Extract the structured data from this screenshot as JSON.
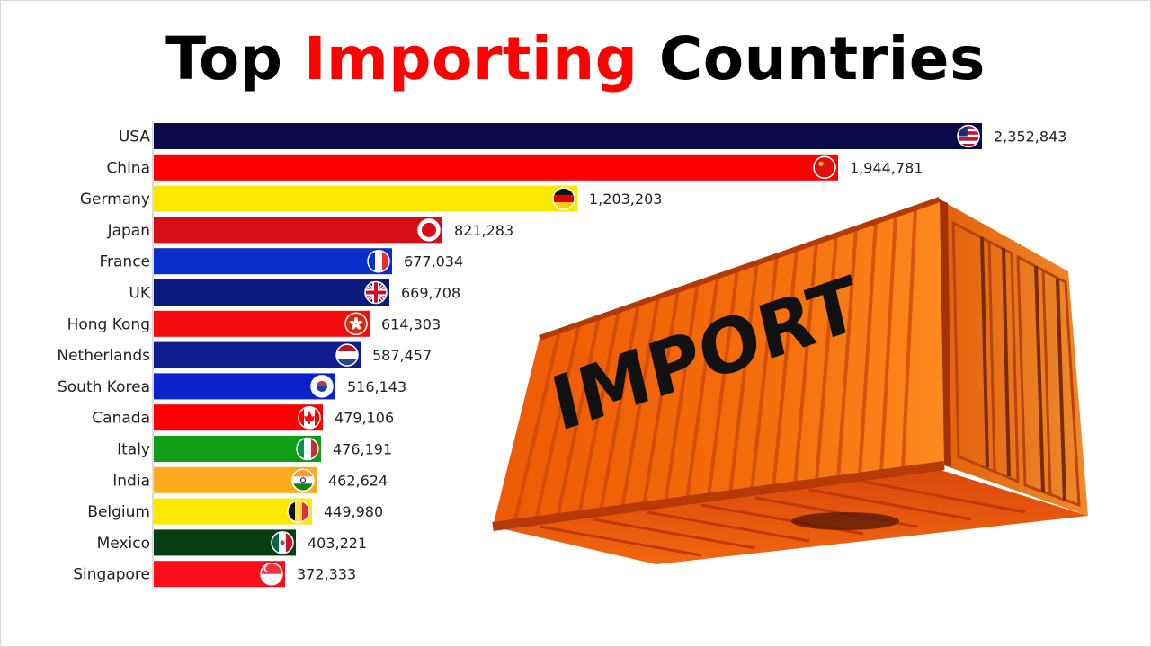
{
  "title": {
    "part1": "Top",
    "part2": "Importing",
    "part3": "Countries",
    "highlight_color": "#ff0000",
    "base_color": "#000000"
  },
  "container_label": "IMPORT",
  "chart_data": {
    "type": "bar",
    "orientation": "horizontal",
    "title": "Top Importing Countries",
    "xlabel": "",
    "ylabel": "",
    "xlim": [
      0,
      2352843
    ],
    "grid": false,
    "legend": "none",
    "categories": [
      "USA",
      "China",
      "Germany",
      "Japan",
      "France",
      "UK",
      "Hong Kong",
      "Netherlands",
      "South Korea",
      "Canada",
      "Italy",
      "India",
      "Belgium",
      "Mexico",
      "Singapore"
    ],
    "values": [
      2352843,
      1944781,
      1203203,
      821283,
      677034,
      669708,
      614303,
      587457,
      516143,
      479106,
      476191,
      462624,
      449980,
      403221,
      372333
    ],
    "value_labels": [
      "2,352,843",
      "1,944,781",
      "1,203,203",
      "821,283",
      "677,034",
      "669,708",
      "614,303",
      "587,457",
      "516,143",
      "479,106",
      "476,191",
      "462,624",
      "449,980",
      "403,221",
      "372,333"
    ],
    "colors": [
      "#0c0b4a",
      "#fc0000",
      "#fde800",
      "#d40e14",
      "#0a2fc8",
      "#0b1a7c",
      "#f30d0d",
      "#101c8e",
      "#0b21c9",
      "#fb0000",
      "#0e9f16",
      "#fdac1d",
      "#fde800",
      "#063d12",
      "#fb0d1a"
    ],
    "flags": [
      "us-flag-icon",
      "china-flag-icon",
      "germany-flag-icon",
      "japan-flag-icon",
      "france-flag-icon",
      "uk-flag-icon",
      "hong-kong-flag-icon",
      "netherlands-flag-icon",
      "south-korea-flag-icon",
      "canada-flag-icon",
      "italy-flag-icon",
      "india-flag-icon",
      "belgium-flag-icon",
      "mexico-flag-icon",
      "singapore-flag-icon"
    ]
  }
}
